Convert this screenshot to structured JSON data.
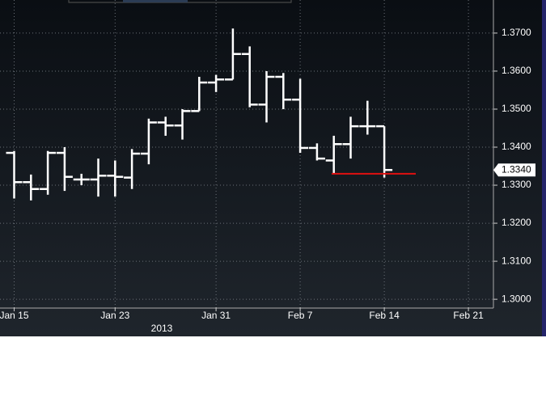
{
  "chart_data": {
    "type": "ohlc",
    "categories": [
      "Jan 15",
      null,
      null,
      null,
      null,
      null,
      "Jan 23",
      null,
      null,
      null,
      null,
      null,
      "Jan 31",
      null,
      null,
      null,
      null,
      "Feb 7",
      null,
      null,
      null,
      null,
      "Feb 14",
      null,
      null,
      null,
      null,
      "Feb 21"
    ],
    "open": [
      1.3385,
      1.3308,
      1.329,
      1.3385,
      1.3315,
      1.3315,
      1.3325,
      1.332,
      1.3383,
      1.3465,
      1.3457,
      1.3495,
      1.357,
      1.3578,
      1.3645,
      1.3512,
      1.3585,
      1.3525,
      1.3398,
      1.3365,
      1.3408,
      1.3455,
      1.3455,
      null,
      null,
      null,
      null,
      null
    ],
    "high": [
      1.339,
      1.3328,
      1.339,
      1.34,
      1.333,
      1.337,
      1.3365,
      1.3395,
      1.3475,
      1.348,
      1.35,
      1.3585,
      1.359,
      1.3712,
      1.3665,
      1.36,
      1.3595,
      1.358,
      1.341,
      1.343,
      1.348,
      1.3522,
      1.3455,
      null,
      null,
      null,
      null,
      null
    ],
    "low": [
      1.3265,
      1.326,
      1.3275,
      1.3285,
      1.33,
      1.327,
      1.327,
      1.329,
      1.3355,
      1.343,
      1.342,
      1.3495,
      1.3545,
      1.3578,
      1.3505,
      1.3465,
      1.35,
      1.3385,
      1.3365,
      1.333,
      1.337,
      1.3433,
      1.332,
      null,
      null,
      null,
      null,
      null
    ],
    "close": [
      1.3308,
      1.329,
      1.3385,
      1.3322,
      1.3315,
      1.3325,
      1.3322,
      1.3383,
      1.3465,
      1.3457,
      1.3495,
      1.357,
      1.3578,
      1.3645,
      1.3512,
      1.3585,
      1.3525,
      1.3398,
      1.337,
      1.3408,
      1.3455,
      1.3455,
      1.334,
      null,
      null,
      null,
      null,
      null
    ],
    "color": "#ffffff",
    "year_label": "2013",
    "last_price": {
      "value": 1.334,
      "label": "1.3340"
    },
    "reference_line": {
      "value": 1.333,
      "color": "#e01010"
    },
    "ylim": [
      1.2979,
      1.3787
    ],
    "yticks": [
      {
        "value": 1.3,
        "label": "1.3000"
      },
      {
        "value": 1.31,
        "label": "1.3100"
      },
      {
        "value": 1.32,
        "label": "1.3200"
      },
      {
        "value": 1.33,
        "label": "1.3300"
      },
      {
        "value": 1.34,
        "label": "1.3400"
      },
      {
        "value": 1.35,
        "label": "1.3500"
      },
      {
        "value": 1.36,
        "label": "1.3600"
      },
      {
        "value": 1.37,
        "label": "1.3700"
      }
    ],
    "grid": true
  }
}
